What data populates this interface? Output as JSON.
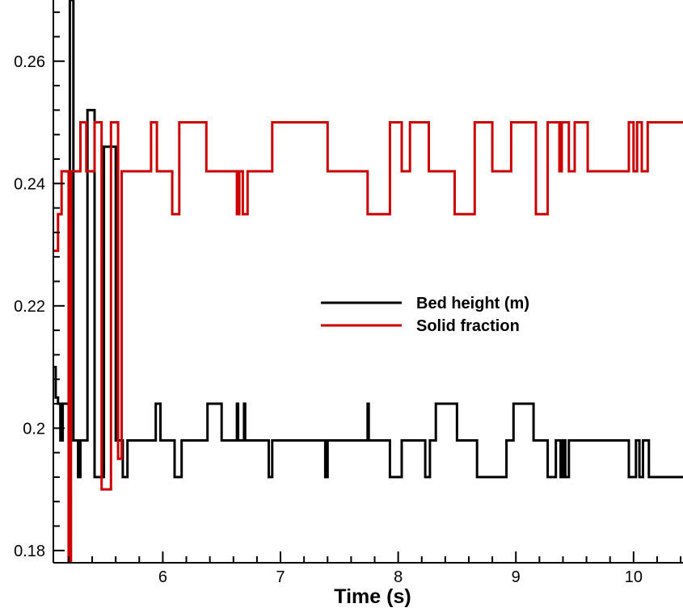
{
  "chart_data": {
    "type": "line",
    "title": "",
    "xlabel": "Time (s)",
    "ylabel": "",
    "xlim": [
      5.07,
      10.42
    ],
    "ylim": [
      0.178,
      0.27
    ],
    "x_ticks": [
      6,
      7,
      8,
      9,
      10
    ],
    "x_tick_labels": [
      "6",
      "7",
      "8",
      "9",
      "10"
    ],
    "y_ticks": [
      0.18,
      0.2,
      0.22,
      0.24,
      0.26
    ],
    "y_tick_labels": [
      "0.18",
      "0.2",
      "0.22",
      "0.24",
      "0.26"
    ],
    "grid": false,
    "legend_position": "center-right",
    "series": [
      {
        "name": "Bed height (m)",
        "color": "#000000",
        "x": [
          5.07,
          5.09,
          5.09,
          5.11,
          5.11,
          5.13,
          5.13,
          5.15,
          5.15,
          5.21,
          5.21,
          5.24,
          5.24,
          5.28,
          5.28,
          5.3,
          5.3,
          5.36,
          5.36,
          5.42,
          5.42,
          5.5,
          5.5,
          5.6,
          5.6,
          5.66,
          5.66,
          5.7,
          5.7,
          5.94,
          5.94,
          5.98,
          5.98,
          6.1,
          6.1,
          6.16,
          6.16,
          6.38,
          6.38,
          6.5,
          6.5,
          6.63,
          6.63,
          6.64,
          6.64,
          6.69,
          6.69,
          6.7,
          6.7,
          6.9,
          6.9,
          6.93,
          6.93,
          7.38,
          7.38,
          7.4,
          7.4,
          7.74,
          7.74,
          7.75,
          7.75,
          7.93,
          7.93,
          8.03,
          8.03,
          8.23,
          8.23,
          8.27,
          8.27,
          8.32,
          8.32,
          8.5,
          8.5,
          8.67,
          8.67,
          8.92,
          8.92,
          8.98,
          8.98,
          9.15,
          9.15,
          9.27,
          9.27,
          9.34,
          9.34,
          9.38,
          9.38,
          9.4,
          9.4,
          9.42,
          9.42,
          9.45,
          9.45,
          9.48,
          9.48,
          9.6,
          9.6,
          9.96,
          9.96,
          10.02,
          10.02,
          10.05,
          10.05,
          10.08,
          10.08,
          10.13,
          10.13,
          10.16,
          10.16,
          10.28,
          10.28,
          10.42
        ],
        "y": [
          0.21,
          0.21,
          0.205,
          0.205,
          0.204,
          0.204,
          0.198,
          0.198,
          0.204,
          0.204,
          0.27,
          0.27,
          0.198,
          0.198,
          0.192,
          0.192,
          0.198,
          0.198,
          0.252,
          0.252,
          0.192,
          0.192,
          0.246,
          0.246,
          0.198,
          0.198,
          0.192,
          0.192,
          0.198,
          0.198,
          0.204,
          0.204,
          0.198,
          0.198,
          0.192,
          0.192,
          0.198,
          0.198,
          0.204,
          0.204,
          0.198,
          0.198,
          0.204,
          0.204,
          0.198,
          0.198,
          0.204,
          0.204,
          0.198,
          0.198,
          0.192,
          0.192,
          0.198,
          0.198,
          0.192,
          0.192,
          0.198,
          0.198,
          0.204,
          0.204,
          0.198,
          0.198,
          0.192,
          0.192,
          0.198,
          0.198,
          0.192,
          0.192,
          0.198,
          0.198,
          0.204,
          0.204,
          0.198,
          0.198,
          0.192,
          0.192,
          0.198,
          0.198,
          0.204,
          0.204,
          0.198,
          0.198,
          0.192,
          0.192,
          0.198,
          0.198,
          0.192,
          0.192,
          0.198,
          0.198,
          0.192,
          0.192,
          0.198,
          0.198,
          0.198,
          0.198,
          0.198,
          0.198,
          0.192,
          0.192,
          0.198,
          0.198,
          0.192,
          0.192,
          0.198,
          0.198,
          0.192,
          0.192,
          0.192,
          0.192,
          0.192,
          0.192
        ]
      },
      {
        "name": "Solid fraction",
        "color": "#cc0000",
        "x": [
          5.07,
          5.11,
          5.11,
          5.13,
          5.13,
          5.14,
          5.14,
          5.2,
          5.2,
          5.22,
          5.22,
          5.26,
          5.26,
          5.3,
          5.3,
          5.35,
          5.35,
          5.42,
          5.42,
          5.48,
          5.48,
          5.56,
          5.56,
          5.62,
          5.62,
          5.65,
          5.65,
          5.68,
          5.68,
          5.9,
          5.9,
          5.95,
          5.95,
          6.08,
          6.08,
          6.14,
          6.14,
          6.37,
          6.37,
          6.47,
          6.47,
          6.63,
          6.63,
          6.65,
          6.65,
          6.68,
          6.68,
          6.72,
          6.72,
          6.91,
          6.91,
          6.93,
          6.93,
          7.4,
          7.4,
          7.74,
          7.74,
          7.93,
          7.93,
          8.03,
          8.03,
          8.1,
          8.1,
          8.26,
          8.26,
          8.48,
          8.48,
          8.65,
          8.65,
          8.8,
          8.8,
          8.96,
          8.96,
          9.17,
          9.17,
          9.27,
          9.27,
          9.37,
          9.37,
          9.39,
          9.39,
          9.45,
          9.45,
          9.5,
          9.5,
          9.61,
          9.61,
          9.96,
          9.96,
          10.0,
          10.0,
          10.03,
          10.03,
          10.07,
          10.07,
          10.12,
          10.12,
          10.16,
          10.16,
          10.27,
          10.27,
          10.42
        ],
        "y": [
          0.229,
          0.229,
          0.235,
          0.235,
          0.235,
          0.235,
          0.242,
          0.242,
          0.178,
          0.178,
          0.242,
          0.242,
          0.242,
          0.242,
          0.25,
          0.25,
          0.242,
          0.242,
          0.25,
          0.25,
          0.19,
          0.19,
          0.25,
          0.25,
          0.195,
          0.195,
          0.242,
          0.242,
          0.242,
          0.242,
          0.25,
          0.25,
          0.242,
          0.242,
          0.235,
          0.235,
          0.25,
          0.25,
          0.242,
          0.242,
          0.242,
          0.242,
          0.235,
          0.235,
          0.242,
          0.242,
          0.235,
          0.235,
          0.242,
          0.242,
          0.242,
          0.242,
          0.25,
          0.25,
          0.242,
          0.242,
          0.235,
          0.235,
          0.25,
          0.25,
          0.242,
          0.242,
          0.25,
          0.25,
          0.242,
          0.242,
          0.235,
          0.235,
          0.25,
          0.25,
          0.242,
          0.242,
          0.25,
          0.25,
          0.235,
          0.235,
          0.25,
          0.25,
          0.242,
          0.242,
          0.25,
          0.25,
          0.242,
          0.242,
          0.25,
          0.25,
          0.242,
          0.242,
          0.25,
          0.25,
          0.242,
          0.242,
          0.25,
          0.25,
          0.242,
          0.242,
          0.25,
          0.25,
          0.25,
          0.25,
          0.25,
          0.25
        ]
      }
    ]
  }
}
